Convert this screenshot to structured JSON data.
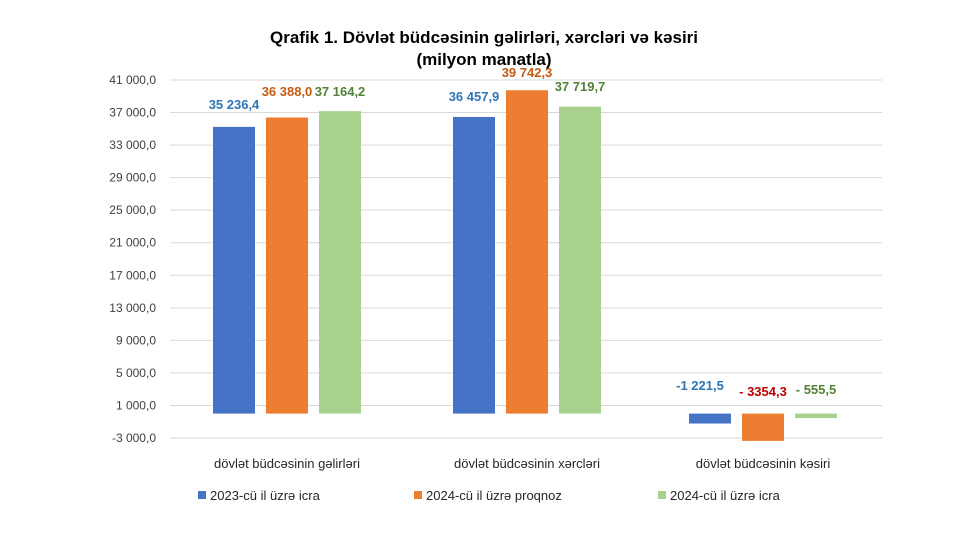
{
  "chart_data": {
    "type": "bar",
    "title": "Qrafik 1. Dövlət büdcəsinin gəlirləri, xərcləri və kəsiri",
    "subtitle": "(milyon manatla)",
    "categories": [
      "dövlət büdcəsinin gəlirləri",
      "dövlət büdcəsinin xərcləri",
      "dövlət büdcəsinin kəsiri"
    ],
    "series": [
      {
        "name": "2023-cü il üzrə icra",
        "color": "#4472C4",
        "label_color": "#2E75B6",
        "values": [
          35236.4,
          36457.9,
          -1221.5
        ],
        "labels": [
          "35 236,4",
          "36 457,9",
          "-1 221,5"
        ]
      },
      {
        "name": "2024-cü il üzrə proqnoz",
        "color": "#ED7D31",
        "label_color": "#C55A11",
        "values": [
          36388.0,
          39742.3,
          -3354.3
        ],
        "labels": [
          "36 388,0",
          "39 742,3",
          "- 3354,3"
        ]
      },
      {
        "name": "2024-cü il üzrə icra",
        "color": "#A9D18E",
        "label_color": "#548235",
        "values": [
          37164.2,
          37719.7,
          -555.5
        ],
        "labels": [
          "37 164,2",
          "37 719,7",
          "- 555,5"
        ]
      }
    ],
    "deficit_label_color_override": {
      "series": 1,
      "color": "#C00000"
    },
    "ylim": [
      -3000,
      41000
    ],
    "yticks": [
      "41 000,0",
      "37 000,0",
      "33 000,0",
      "29 000,0",
      "25 000,0",
      "21 000,0",
      "17 000,0",
      "13 000,0",
      "9 000,0",
      "5 000,0",
      "1 000,0",
      "-3 000,0"
    ],
    "ytick_values": [
      41000,
      37000,
      33000,
      29000,
      25000,
      21000,
      17000,
      13000,
      9000,
      5000,
      1000,
      -3000
    ],
    "grid": true,
    "legend_position": "bottom",
    "xlabel": "",
    "ylabel": ""
  }
}
